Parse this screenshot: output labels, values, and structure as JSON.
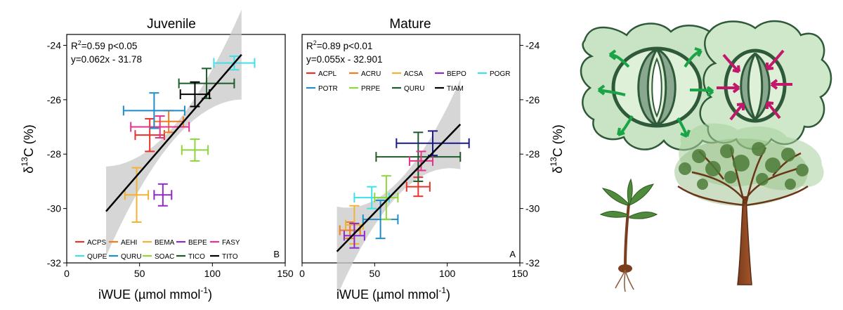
{
  "chart_data": [
    {
      "type": "scatter",
      "title": "Juvenile",
      "xlabel": "iWUE (µmol mmol",
      "xlabel_sup": "-1",
      "xlabel_close": ")",
      "ylabel": "C (%)",
      "ylabel_pre": "δ",
      "ylabel_sup": "13",
      "xlim": [
        0,
        150
      ],
      "ylim": [
        -32,
        -23.6
      ],
      "xticks": [
        "0",
        "50",
        "100",
        "150"
      ],
      "xtick_values": [
        0,
        50,
        100,
        150
      ],
      "yticks": [
        "-24",
        "-26",
        "-28",
        "-30",
        "-32"
      ],
      "ytick_values": [
        -24,
        -26,
        -28,
        -30,
        -32
      ],
      "stats_r2_label": "R",
      "stats_r2_sup": "2",
      "stats_r2_rest": "=0.59 p<0.05",
      "stats_eq": "y=0.062x - 31.78",
      "panel_letter": "B",
      "grid": false,
      "legend_position": "bottom",
      "regression": {
        "slope": 0.062,
        "intercept": -31.78,
        "x_range": [
          27,
          120
        ]
      },
      "series": [
        {
          "name": "ACPS",
          "color": "#e8332b",
          "x": 57,
          "xerr": 10,
          "y": -27.3,
          "yerr": 0.6
        },
        {
          "name": "AEHI",
          "color": "#f07d1f",
          "x": 70,
          "xerr": 10,
          "y": -26.8,
          "yerr": 0.4
        },
        {
          "name": "BEMA",
          "color": "#f2b233",
          "x": 48,
          "xerr": 8,
          "y": -29.5,
          "yerr": 1.0
        },
        {
          "name": "BEPE",
          "color": "#8e2bc8",
          "x": 66,
          "xerr": 6,
          "y": -29.5,
          "yerr": 0.4
        },
        {
          "name": "FASY",
          "color": "#e8318b",
          "x": 64,
          "xerr": 20,
          "y": -27.0,
          "yerr": 0.4
        },
        {
          "name": "QUPE",
          "color": "#3fe0ea",
          "x": 115,
          "xerr": 14,
          "y": -24.65,
          "yerr": 0.25
        },
        {
          "name": "QURU",
          "color": "#1f8dc8",
          "x": 60,
          "xerr": 21,
          "y": -26.4,
          "yerr": 0.65
        },
        {
          "name": "SOAC",
          "color": "#8fd63b",
          "x": 88,
          "xerr": 9,
          "y": -27.85,
          "yerr": 0.4
        },
        {
          "name": "TICO",
          "color": "#1d5c2a",
          "x": 96,
          "xerr": 19,
          "y": -25.4,
          "yerr": 0.55
        },
        {
          "name": "TITO",
          "color": "#000000",
          "x": 88,
          "xerr": 10,
          "y": -25.8,
          "yerr": 0.45
        }
      ]
    },
    {
      "type": "scatter",
      "title": "Mature",
      "xlabel": "iWUE (µmol mmol",
      "xlabel_sup": "-1",
      "xlabel_close": ")",
      "ylabel": "C (%)",
      "ylabel_pre": "δ",
      "ylabel_sup": "13",
      "xlim": [
        0,
        150
      ],
      "ylim": [
        -32,
        -23.6
      ],
      "xticks": [
        "0",
        "50",
        "100",
        "150"
      ],
      "xtick_values": [
        0,
        50,
        100,
        150
      ],
      "yticks": [
        "-24",
        "-26",
        "-28",
        "-30",
        "-32"
      ],
      "ytick_values": [
        -24,
        -26,
        -28,
        -30,
        -32
      ],
      "stats_r2_label": "R",
      "stats_r2_sup": "2",
      "stats_r2_rest": "=0.89 p<0.01",
      "stats_eq": "y=0.055x - 32.901",
      "panel_letter": "A",
      "grid": false,
      "legend_position": "top-left",
      "regression": {
        "slope": 0.055,
        "intercept": -32.901,
        "x_range": [
          24,
          109
        ]
      },
      "series": [
        {
          "name": "ACPL",
          "color": "#e8332b",
          "x": 80,
          "xerr": 8,
          "y": -29.2,
          "yerr": 0.35
        },
        {
          "name": "ACRU",
          "color": "#f07d1f",
          "x": 33,
          "xerr": 7,
          "y": -30.8,
          "yerr": 0.3
        },
        {
          "name": "ACSA",
          "color": "#f2b233",
          "x": 36,
          "xerr": 6,
          "y": -30.6,
          "yerr": 0.7
        },
        {
          "name": "BEPO",
          "color": "#8e2bc8",
          "x": 36,
          "xerr": 7,
          "y": -31.0,
          "yerr": 0.45
        },
        {
          "name": "POGR",
          "color": "#3fe0ea",
          "x": 48,
          "xerr": 12,
          "y": -29.6,
          "yerr": 0.4
        },
        {
          "name": "POTR",
          "color": "#1f8dc8",
          "x": 54,
          "xerr": 12,
          "y": -30.4,
          "yerr": 0.7
        },
        {
          "name": "PRPE",
          "color": "#8fd63b",
          "x": 58,
          "xerr": 8,
          "y": -29.6,
          "yerr": 0.8
        },
        {
          "name": "QURU",
          "color": "#1d5c2a",
          "x": 80,
          "xerr": 29,
          "y": -28.1,
          "yerr": 0.9
        },
        {
          "name": "TIAM",
          "color": "#000000",
          "x": 0,
          "xerr": 0,
          "y": 0,
          "yerr": 0,
          "hidden": true
        },
        {
          "name": "",
          "color": "#e8318b",
          "x": 82,
          "xerr": 8,
          "y": -28.25,
          "yerr": 0.35
        },
        {
          "name": "",
          "color": "#1b1a8c",
          "x": 90,
          "xerr": 25,
          "y": -27.6,
          "yerr": 0.45
        }
      ]
    }
  ]
}
